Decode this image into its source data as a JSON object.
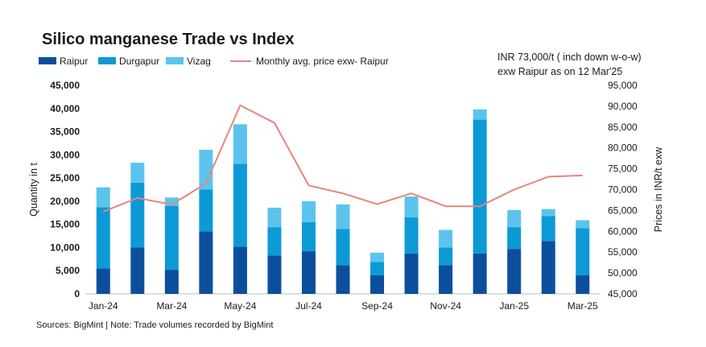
{
  "chart_data": {
    "type": "bar",
    "title": "Silico manganese Trade vs Index",
    "annotation": "INR 73,000/t ( inch down w-o-w) exw Raipur as on 12 Mar'25",
    "source_note": "Sources: BigMint | Note: Trade volumes recorded by BigMint",
    "ylabel": "Quantity in t",
    "y2label": "Prices in INR/t exw",
    "ylim": [
      0,
      45000
    ],
    "y2lim": [
      45000,
      95000
    ],
    "ytick_labels": [
      "0",
      "5,000",
      "10,000",
      "15,000",
      "20,000",
      "25,000",
      "30,000",
      "35,000",
      "40,000",
      "45,000"
    ],
    "y2tick_labels": [
      "45,000",
      "50,000",
      "55,000",
      "60,000",
      "65,000",
      "70,000",
      "75,000",
      "80,000",
      "85,000",
      "90,000",
      "95,000"
    ],
    "xtick_labels": [
      "Jan-24",
      "Mar-24",
      "May-24",
      "Jul-24",
      "Sep-24",
      "Nov-24",
      "Jan-25",
      "Mar-25"
    ],
    "categories": [
      "Jan-24",
      "Feb-24",
      "Mar-24",
      "Apr-24",
      "May-24",
      "Jun-24",
      "Jul-24",
      "Aug-24",
      "Sep-24",
      "Oct-24",
      "Nov-24",
      "Dec-24",
      "Jan-25",
      "Feb-25",
      "Mar-25"
    ],
    "stacked": true,
    "series": [
      {
        "name": "Raipur",
        "color": "#0b4f9c",
        "values": [
          5500,
          10000,
          5200,
          13500,
          10200,
          8300,
          9200,
          6200,
          4000,
          8700,
          6200,
          8700,
          9700,
          11400,
          4000
        ]
      },
      {
        "name": "Durgapur",
        "color": "#0c9ad6",
        "values": [
          13200,
          14000,
          13800,
          9000,
          17900,
          6100,
          6300,
          7800,
          2900,
          7800,
          3800,
          28900,
          4700,
          5400,
          10200
        ]
      },
      {
        "name": "Vizag",
        "color": "#5cc4ec",
        "values": [
          4300,
          4300,
          1800,
          8600,
          8500,
          4200,
          4500,
          5300,
          2000,
          4500,
          3800,
          2200,
          3700,
          1500,
          1700
        ]
      }
    ],
    "line_series": {
      "name": "Monthly avg. price exw- Raipur",
      "color": "#e8847f",
      "axis": "right",
      "values": [
        64700,
        68000,
        66400,
        71500,
        90200,
        86000,
        71000,
        69100,
        66500,
        69100,
        66000,
        66000,
        70000,
        73100,
        73400
      ]
    },
    "legend_position": "top-left",
    "grid": false
  }
}
